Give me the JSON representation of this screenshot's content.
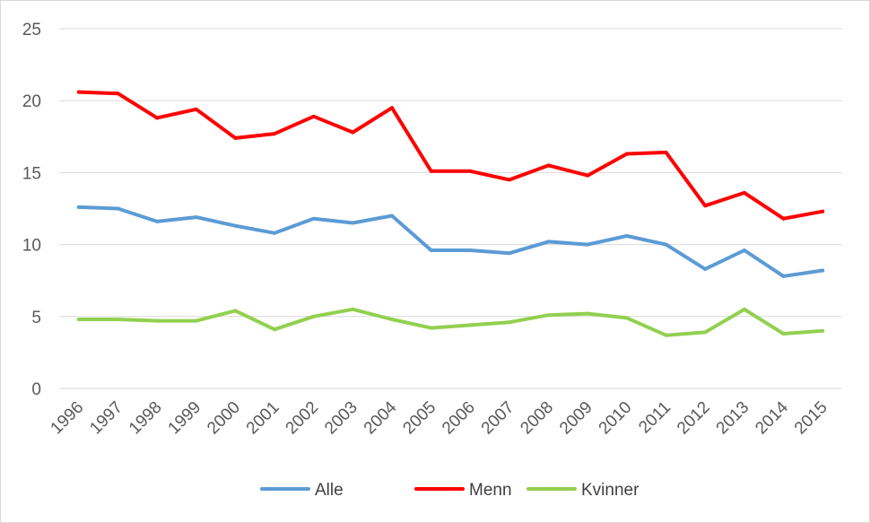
{
  "chart_data": {
    "type": "line",
    "title": "",
    "xlabel": "",
    "ylabel": "",
    "ylim": [
      0,
      25
    ],
    "yticks": [
      0,
      5,
      10,
      15,
      20,
      25
    ],
    "grid": true,
    "legend_position": "bottom",
    "categories": [
      "1996",
      "1997",
      "1998",
      "1999",
      "2000",
      "2001",
      "2002",
      "2003",
      "2004",
      "2005",
      "2006",
      "2007",
      "2008",
      "2009",
      "2010",
      "2011",
      "2012",
      "2013",
      "2014",
      "2015"
    ],
    "series": [
      {
        "name": "Alle",
        "color": "#5B9BD5",
        "values": [
          12.6,
          12.5,
          11.6,
          11.9,
          11.3,
          10.8,
          11.8,
          11.5,
          12.0,
          9.6,
          9.6,
          9.4,
          10.2,
          10.0,
          10.6,
          10.0,
          8.3,
          9.6,
          7.8,
          8.2
        ]
      },
      {
        "name": "Menn",
        "color": "#FF0000",
        "values": [
          20.6,
          20.5,
          18.8,
          19.4,
          17.4,
          17.7,
          18.9,
          17.8,
          19.5,
          15.1,
          15.1,
          14.5,
          15.5,
          14.8,
          16.3,
          16.4,
          12.7,
          13.6,
          11.8,
          12.3
        ]
      },
      {
        "name": "Kvinner",
        "color": "#92D050",
        "values": [
          4.8,
          4.8,
          4.7,
          4.7,
          5.4,
          4.1,
          5.0,
          5.5,
          4.8,
          4.2,
          4.4,
          4.6,
          5.1,
          5.2,
          4.9,
          3.7,
          3.9,
          5.5,
          3.8,
          4.0
        ]
      }
    ]
  }
}
